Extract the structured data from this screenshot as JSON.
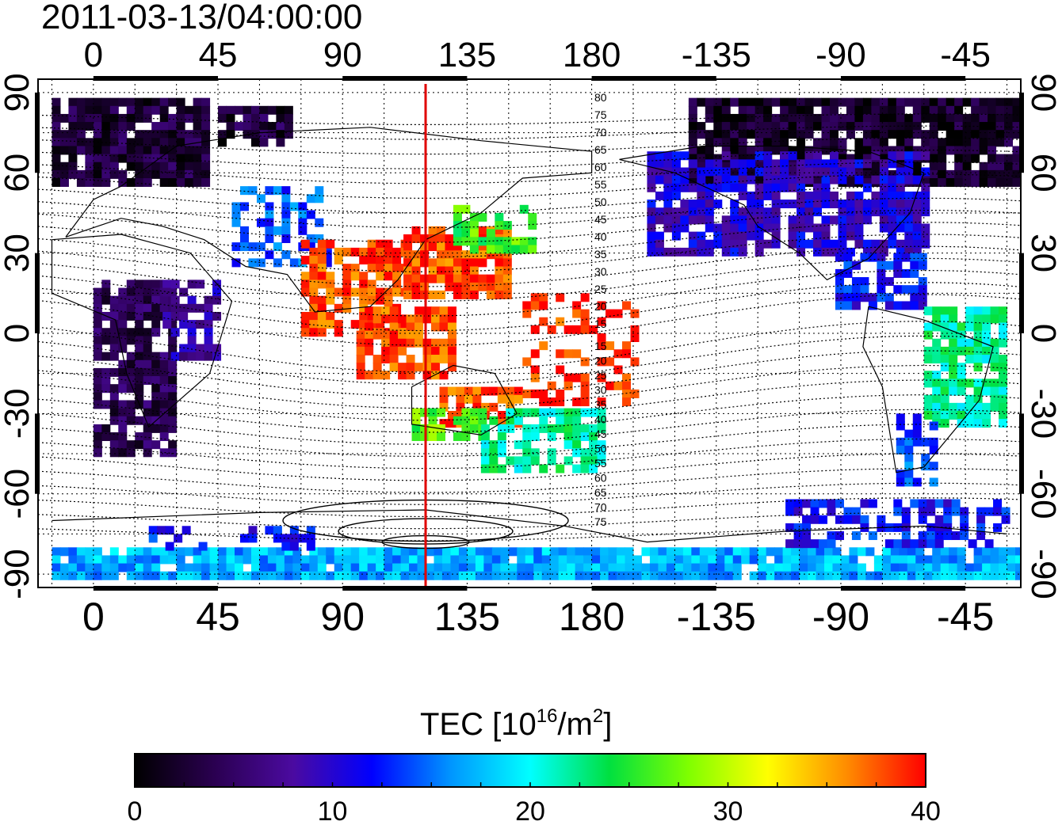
{
  "title": "2011-03-13/04:00:00",
  "top_lon_labels": [
    "0",
    "45",
    "90",
    "135",
    "180",
    "-135",
    "-90",
    "-45"
  ],
  "bottom_lon_labels": [
    "0",
    "45",
    "90",
    "135",
    "180",
    "-135",
    "-90",
    "-45"
  ],
  "left_lat_labels": [
    "90",
    "60",
    "30",
    "0",
    "-30",
    "-60",
    "-90"
  ],
  "right_lat_labels": [
    "90",
    "60",
    "30",
    "0",
    "-30",
    "-60",
    "-90"
  ],
  "lon_values": [
    0,
    45,
    90,
    135,
    180,
    225,
    270,
    315
  ],
  "lat_values": [
    90,
    60,
    30,
    0,
    -30,
    -60,
    -90
  ],
  "map_extent": {
    "lon_min": -20,
    "lon_max": 335,
    "lat_min": -95,
    "lat_max": 95
  },
  "marker_line_lon": 120,
  "marker_line_color": "#e00000",
  "north_contour_labels": [
    "80",
    "75",
    "70",
    "65",
    "60",
    "55",
    "50",
    "45",
    "40",
    "35",
    "30",
    "25",
    "20",
    "15"
  ],
  "south_contour_labels": [
    "15",
    "20",
    "25",
    "30",
    "35",
    "40",
    "45",
    "50",
    "55",
    "60",
    "65",
    "70",
    "75"
  ],
  "colorbar": {
    "title_text": "TEC  [10",
    "title_sup": "16",
    "title_mid": "/m",
    "title_sup2": "2",
    "title_end": "]",
    "min": 0,
    "max": 40,
    "tick_labels": [
      "0",
      "10",
      "20",
      "30",
      "40"
    ],
    "colors": [
      "#000000",
      "#2a0050",
      "#4b0aa0",
      "#0000ff",
      "#0096ff",
      "#00ffff",
      "#00e040",
      "#7fff00",
      "#ffff00",
      "#ff8c00",
      "#ff0000"
    ]
  }
}
